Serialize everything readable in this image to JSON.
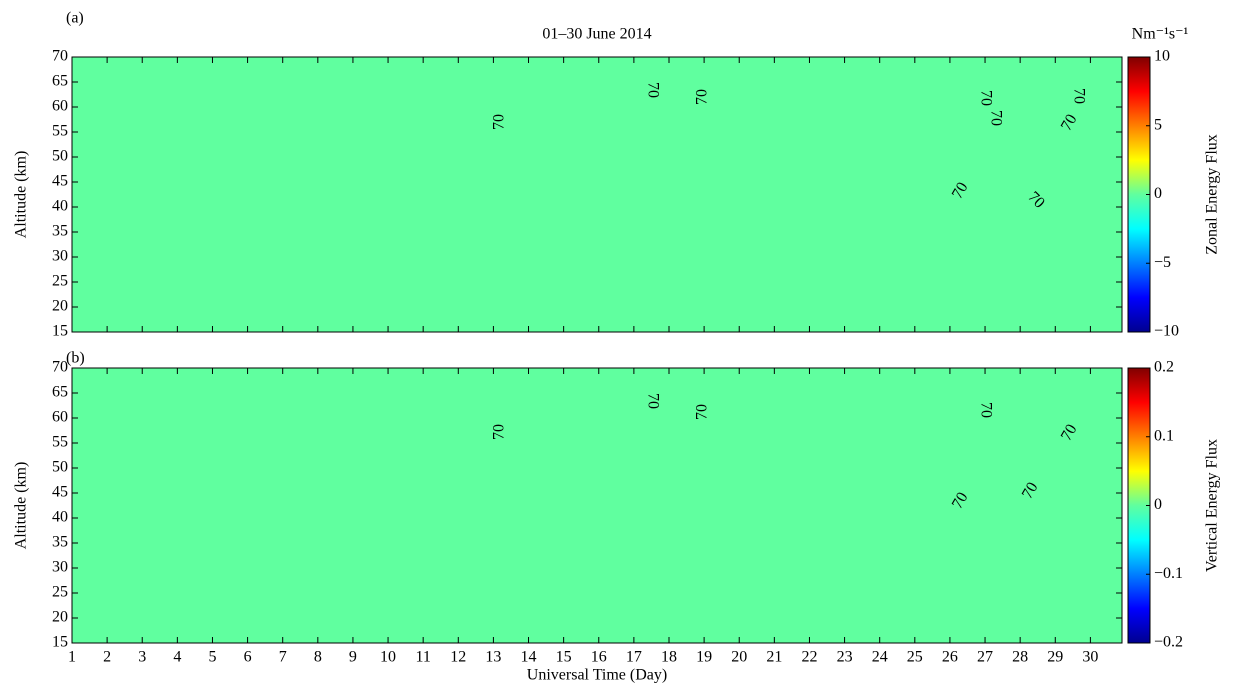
{
  "chart_data": [
    {
      "type": "heatmap",
      "panel_label": "(a)",
      "title": "01–30 June 2014",
      "ylabel": "Altitude (km)",
      "xlim": [
        1,
        30.9
      ],
      "xticks": [
        1,
        2,
        3,
        4,
        5,
        6,
        7,
        8,
        9,
        10,
        11,
        12,
        13,
        14,
        15,
        16,
        17,
        18,
        19,
        20,
        21,
        22,
        23,
        24,
        25,
        26,
        27,
        28,
        29,
        30
      ],
      "xtick_labels": false,
      "ylim": [
        15,
        70
      ],
      "yticks": [
        15,
        20,
        25,
        30,
        35,
        40,
        45,
        50,
        55,
        60,
        65,
        70
      ],
      "colorbar_label": "Zonal Energy Flux",
      "colorbar_units": "Nm⁻¹s⁻¹",
      "clim": [
        -10,
        10
      ],
      "cticks": [
        {
          "value": -10,
          "label": "−10"
        },
        {
          "value": -5,
          "label": "−5"
        },
        0,
        5,
        10
      ],
      "contour_labels": [
        "70",
        "70",
        "70",
        "70",
        "70",
        "70",
        "70",
        "70",
        "70"
      ]
    },
    {
      "type": "heatmap",
      "panel_label": "(b)",
      "xlabel": "Universal Time (Day)",
      "ylabel": "Altitude (km)",
      "xlim": [
        1,
        30.9
      ],
      "xticks": [
        1,
        2,
        3,
        4,
        5,
        6,
        7,
        8,
        9,
        10,
        11,
        12,
        13,
        14,
        15,
        16,
        17,
        18,
        19,
        20,
        21,
        22,
        23,
        24,
        25,
        26,
        27,
        28,
        29,
        30
      ],
      "xtick_labels": true,
      "ylim": [
        15,
        70
      ],
      "yticks": [
        15,
        20,
        25,
        30,
        35,
        40,
        45,
        50,
        55,
        60,
        65,
        70
      ],
      "colorbar_label": "Vertical Energy Flux",
      "clim": [
        -0.2,
        0.2
      ],
      "cticks": [
        {
          "value": -0.2,
          "label": "−0.2"
        },
        {
          "value": -0.1,
          "label": "−0.1"
        },
        0,
        0.1,
        0.2
      ],
      "contour_labels": [
        "70",
        "70",
        "70",
        "70",
        "70",
        "70",
        "70"
      ]
    }
  ]
}
